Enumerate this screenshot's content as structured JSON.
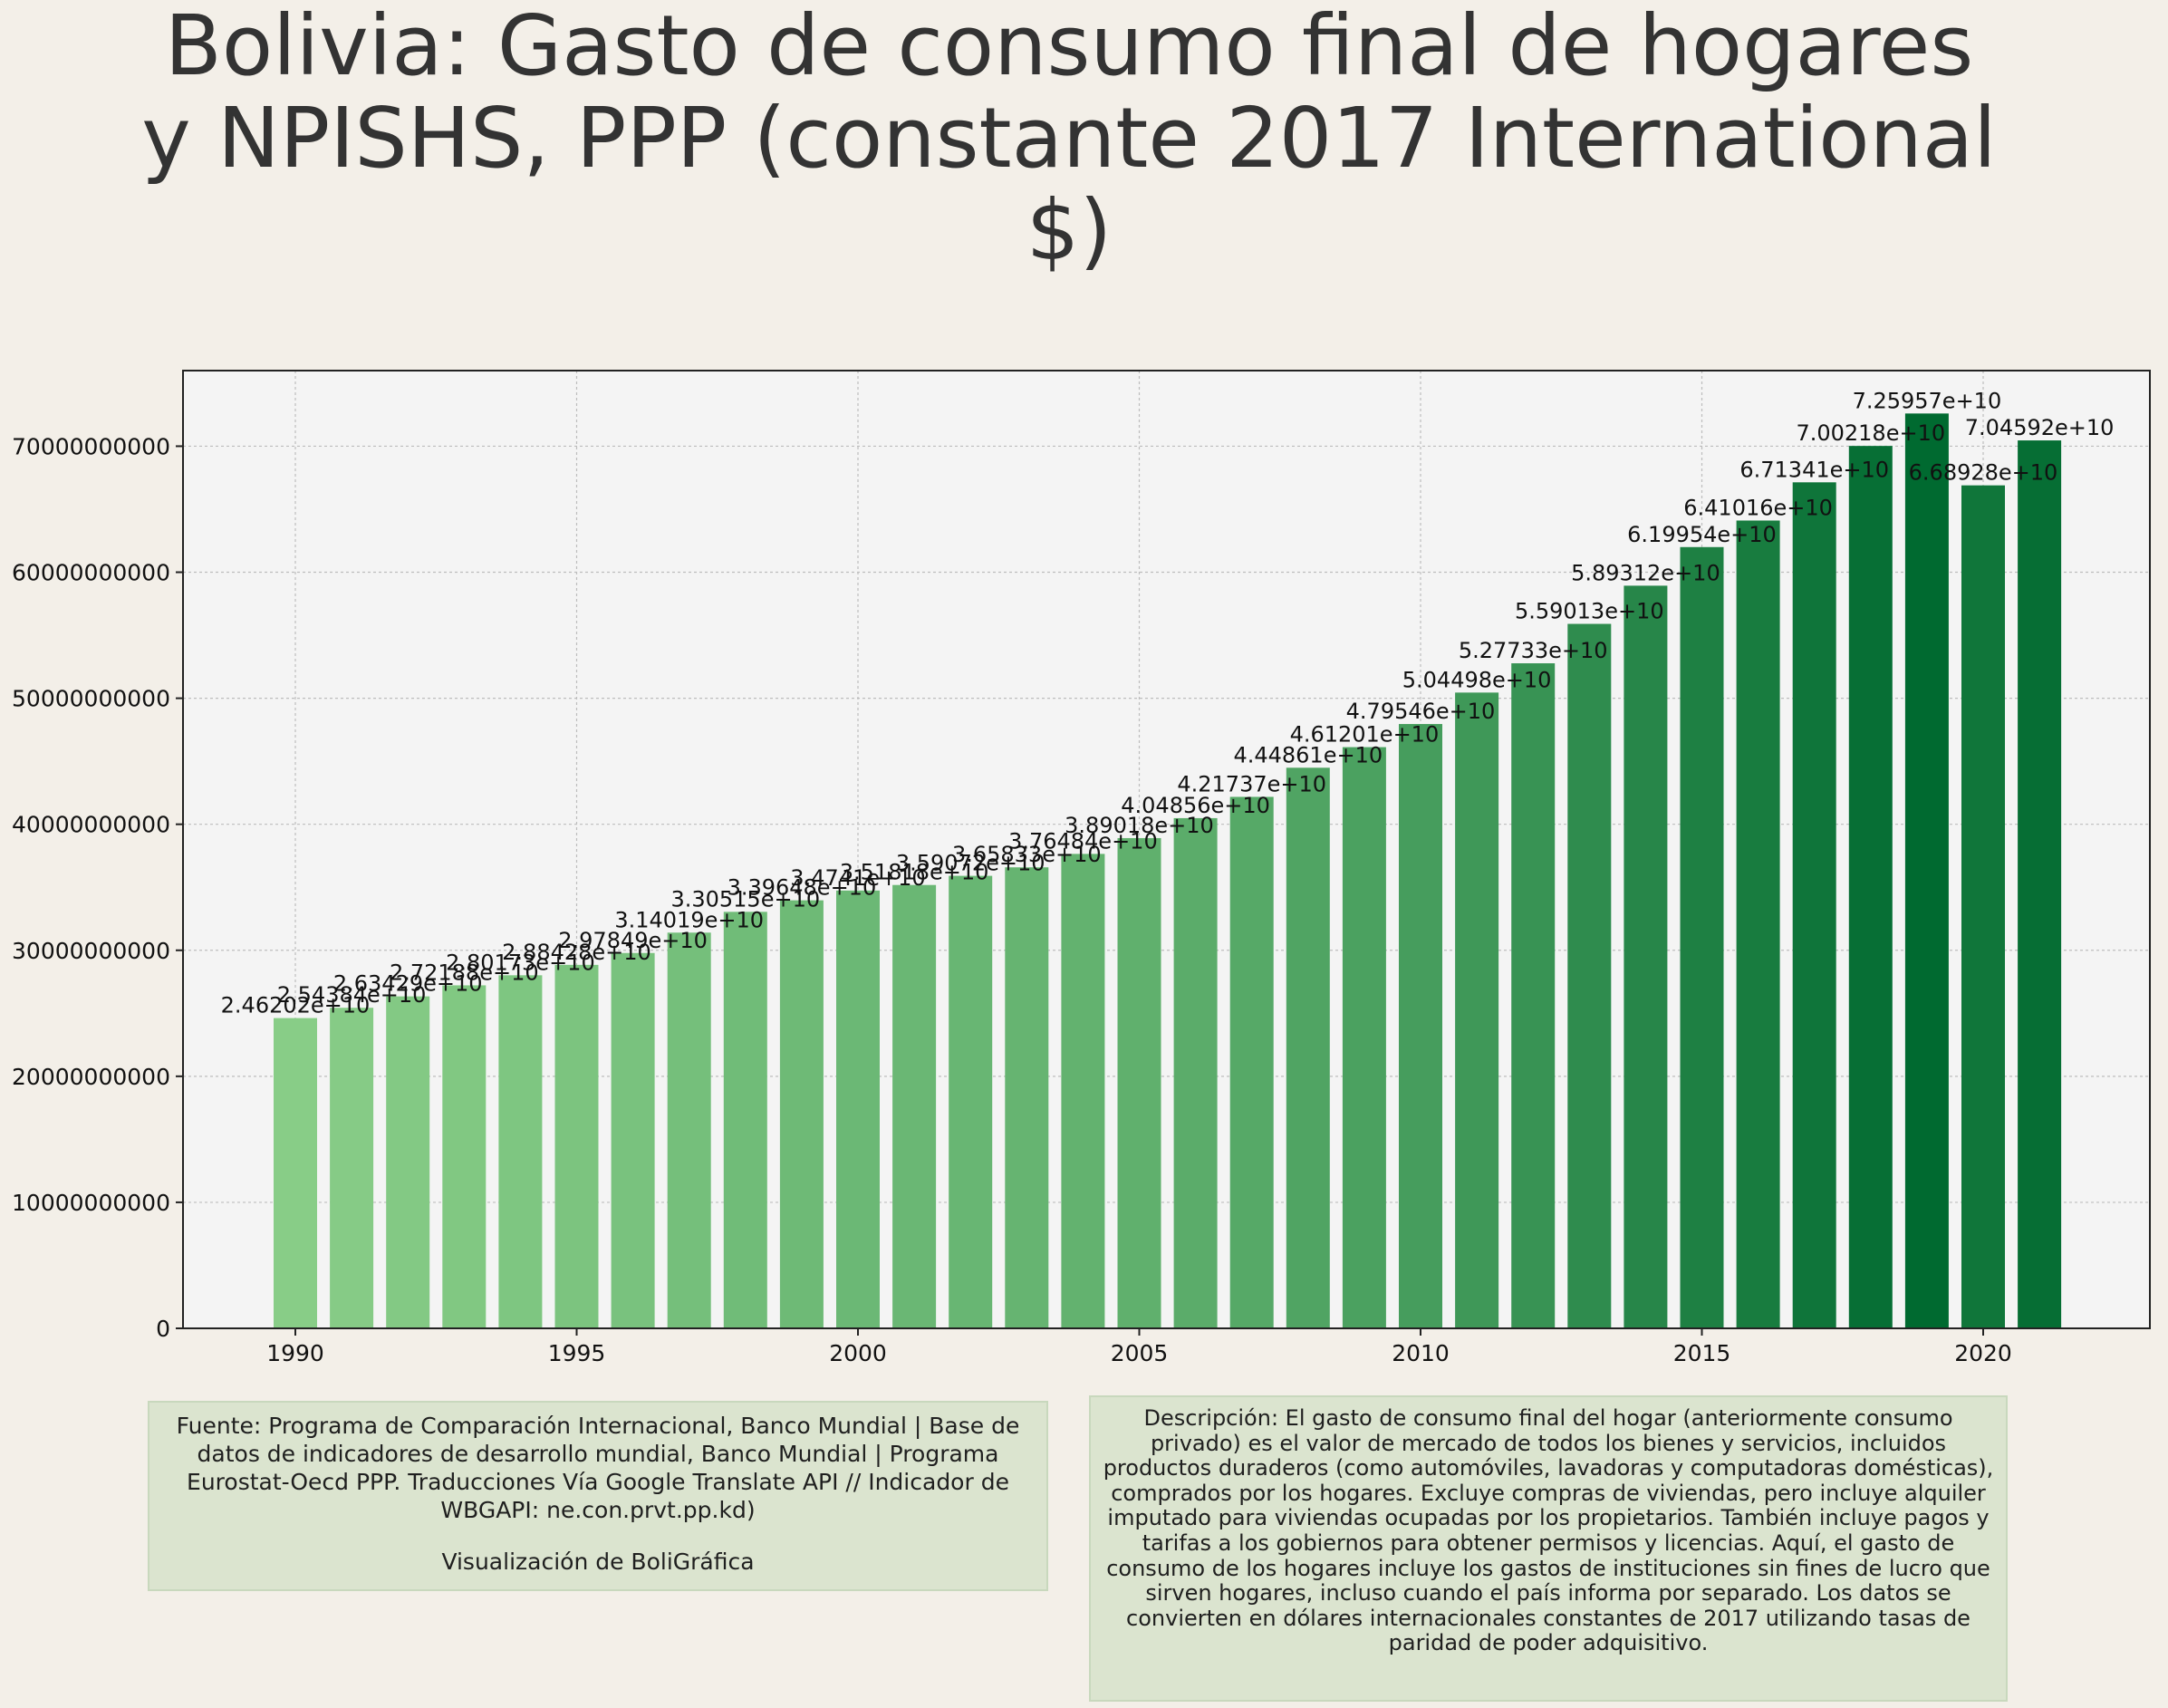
{
  "title": "Bolivia:  Gasto de consumo final de hogares y NPISHS, PPP (constante 2017 International $)",
  "colors": {
    "background": "#f3efe8",
    "plot_background": "#f4f4f4",
    "bar_light": "#88cd87",
    "bar_dark": "#006a30",
    "info_box": "#dbe4cf"
  },
  "chart_data": {
    "type": "bar",
    "categories": [
      "1990",
      "1991",
      "1992",
      "1993",
      "1994",
      "1995",
      "1996",
      "1997",
      "1998",
      "1999",
      "2000",
      "2001",
      "2002",
      "2003",
      "2004",
      "2005",
      "2006",
      "2007",
      "2008",
      "2009",
      "2010",
      "2011",
      "2012",
      "2013",
      "2014",
      "2015",
      "2016",
      "2017",
      "2018",
      "2019",
      "2020",
      "2021"
    ],
    "values": [
      24620200000,
      25438400000,
      26342900000,
      27218800000,
      28017300000,
      28842800000,
      29784900000,
      31401900000,
      33051500000,
      33964800000,
      34741000000,
      35181800000,
      35907200000,
      36583300000,
      37648400000,
      38901800000,
      40485600000,
      42173700000,
      44486100000,
      46120100000,
      47954600000,
      50449800000,
      52773300000,
      55901300000,
      58931200000,
      61995400000,
      64101600000,
      67134100000,
      70021800000,
      72595700000,
      66892800000,
      70459200000
    ],
    "labels": [
      "2.46202e+10",
      "2.54384e+10",
      "2.63429e+10",
      "2.72188e+10",
      "2.80173e+10",
      "2.88428e+10",
      "2.97849e+10",
      "3.14019e+10",
      "3.30515e+10",
      "3.39648e+10",
      "3.4741e+10",
      "3.51818e+10",
      "3.59072e+10",
      "3.65833e+10",
      "3.76484e+10",
      "3.89018e+10",
      "4.04856e+10",
      "4.21737e+10",
      "4.44861e+10",
      "4.61201e+10",
      "4.79546e+10",
      "5.04498e+10",
      "5.27733e+10",
      "5.59013e+10",
      "5.89312e+10",
      "6.19954e+10",
      "6.41016e+10",
      "6.71341e+10",
      "7.00218e+10",
      "7.25957e+10",
      "6.68928e+10",
      "7.04592e+10"
    ],
    "x_ticks": [
      "1990",
      "1995",
      "2000",
      "2005",
      "2010",
      "2015",
      "2020"
    ],
    "y_ticks": [
      "0",
      "10000000000",
      "20000000000",
      "30000000000",
      "40000000000",
      "50000000000",
      "60000000000",
      "70000000000"
    ],
    "ylim": [
      0,
      76000000000
    ],
    "xlabel": "",
    "ylabel": "",
    "grid": true
  },
  "source_box": {
    "text": "Fuente: Programa de Comparación Internacional, Banco Mundial | Base de datos de indicadores de desarrollo mundial, Banco Mundial | Programa Eurostat-Oecd PPP. Traducciones Vía Google Translate API // Indicador de WBGAPI: ne.con.prvt.pp.kd)",
    "credit": "Visualización de BoliGráfica"
  },
  "description_box": {
    "text": "Descripción: El gasto de consumo final del hogar (anteriormente consumo privado) es el valor de mercado de todos los bienes y servicios, incluidos productos duraderos (como automóviles, lavadoras y computadoras domésticas), comprados por los hogares. Excluye compras de viviendas, pero incluye alquiler imputado para viviendas ocupadas por los propietarios. También incluye pagos y tarifas a los gobiernos para obtener permisos y licencias. Aquí, el gasto de consumo de los hogares incluye los gastos de instituciones sin fines de lucro que sirven hogares, incluso cuando el país informa por separado. Los datos se convierten en dólares internacionales constantes de 2017 utilizando tasas de paridad de poder adquisitivo."
  }
}
